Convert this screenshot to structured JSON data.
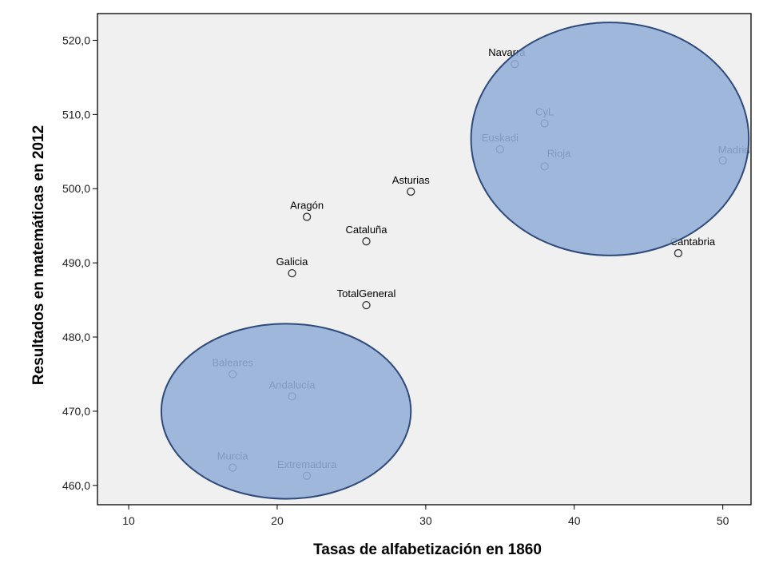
{
  "chart_data": {
    "type": "scatter",
    "title": "",
    "xlabel": "Tasas de alfabetización en 1860",
    "ylabel": "Resultados en matemáticas en 2012",
    "xlim": [
      7.9,
      51.9
    ],
    "ylim": [
      457.4,
      523.6
    ],
    "xticks": [
      10,
      20,
      30,
      40,
      50
    ],
    "yticks": [
      460,
      470,
      480,
      490,
      500,
      510,
      520
    ],
    "xtick_labels": [
      "10",
      "20",
      "30",
      "40",
      "50"
    ],
    "ytick_labels": [
      "460,0",
      "470,0",
      "480,0",
      "490,0",
      "500,0",
      "510,0",
      "520,0"
    ],
    "grid": false,
    "legend": "none",
    "colors": {
      "plot_background": "#f0f0f0",
      "marker": "#333333",
      "ellipse_fill": "#93aed6",
      "ellipse_stroke": "#2e4a7a"
    },
    "points": [
      {
        "label": "Navarra",
        "x": 36,
        "y": 516.8
      },
      {
        "label": "CyL",
        "x": 38,
        "y": 508.8
      },
      {
        "label": "Euskadi",
        "x": 35,
        "y": 505.3
      },
      {
        "label": "Rioja",
        "x": 38,
        "y": 503.0
      },
      {
        "label": "Madrid",
        "x": 50,
        "y": 503.8
      },
      {
        "label": "Cantabria",
        "x": 47,
        "y": 491.3
      },
      {
        "label": "Asturias",
        "x": 29,
        "y": 499.6
      },
      {
        "label": "Aragón",
        "x": 22,
        "y": 496.2
      },
      {
        "label": "Cataluña",
        "x": 26,
        "y": 492.9
      },
      {
        "label": "Galicia",
        "x": 21,
        "y": 488.6
      },
      {
        "label": "TotalGeneral",
        "x": 26,
        "y": 484.3
      },
      {
        "label": "Baleares",
        "x": 17,
        "y": 475.0
      },
      {
        "label": "Andalucía",
        "x": 21,
        "y": 472.0
      },
      {
        "label": "Murcia",
        "x": 17,
        "y": 462.4
      },
      {
        "label": "Extremadura",
        "x": 22,
        "y": 461.3
      }
    ],
    "highlight_ellipses": [
      {
        "cx": 42.4,
        "cy": 506.7,
        "rx": 9.35,
        "ry": 15.7
      },
      {
        "cx": 20.6,
        "cy": 470.0,
        "rx": 8.4,
        "ry": 11.8
      }
    ]
  }
}
